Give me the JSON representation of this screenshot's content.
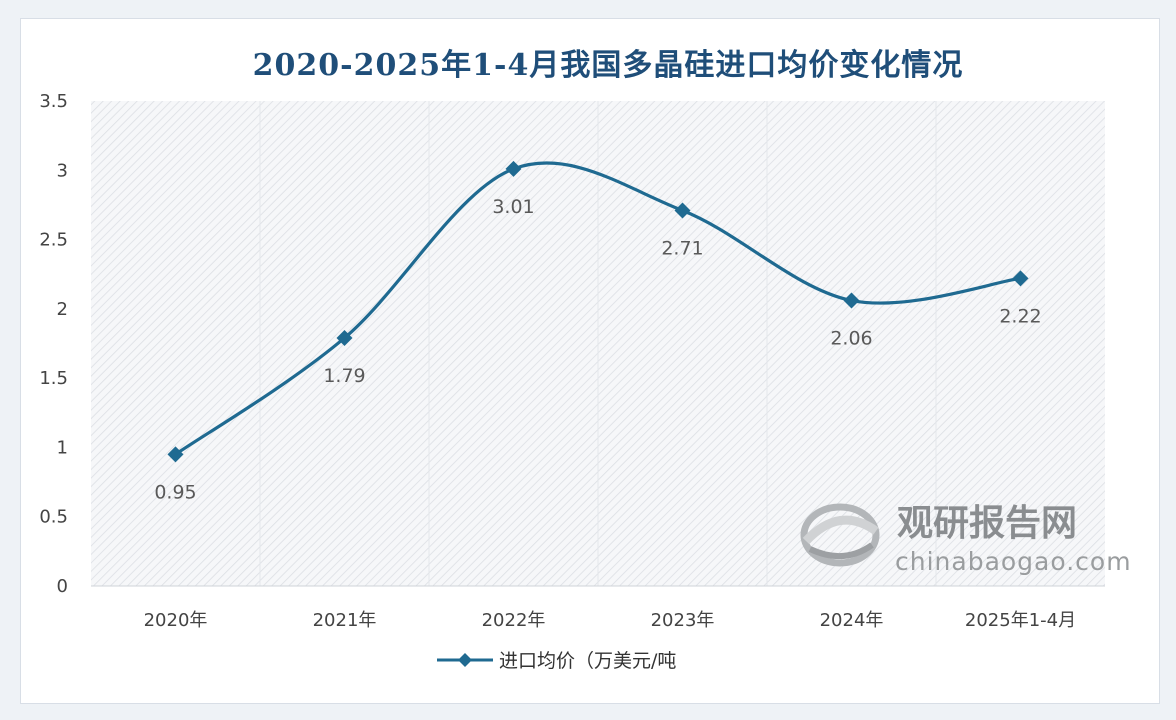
{
  "chart_data": {
    "type": "line",
    "title": "2020-2025年1-4月我国多晶硅进口均价变化情况",
    "categories": [
      "2020年",
      "2021年",
      "2022年",
      "2023年",
      "2024年",
      "2025年1-4月"
    ],
    "series": [
      {
        "name": "进口均价（万美元/吨",
        "values": [
          0.95,
          1.79,
          3.01,
          2.71,
          2.06,
          2.22
        ],
        "color": "#1f6a91"
      }
    ],
    "data_labels": [
      "0.95",
      "1.79",
      "3.01",
      "2.71",
      "2.06",
      "2.22"
    ],
    "y_ticks": [
      "0",
      "0.5",
      "1",
      "1.5",
      "2",
      "2.5",
      "3",
      "3.5"
    ],
    "ylim": [
      0,
      3.5
    ],
    "smooth": true,
    "marker": "diamond",
    "legend_position": "bottom-center",
    "grid": "vertical-bands"
  },
  "watermark": {
    "name_cn": "观研报告网",
    "url": "chinabaogao.com",
    "icon": "logo-swirl-icon"
  }
}
